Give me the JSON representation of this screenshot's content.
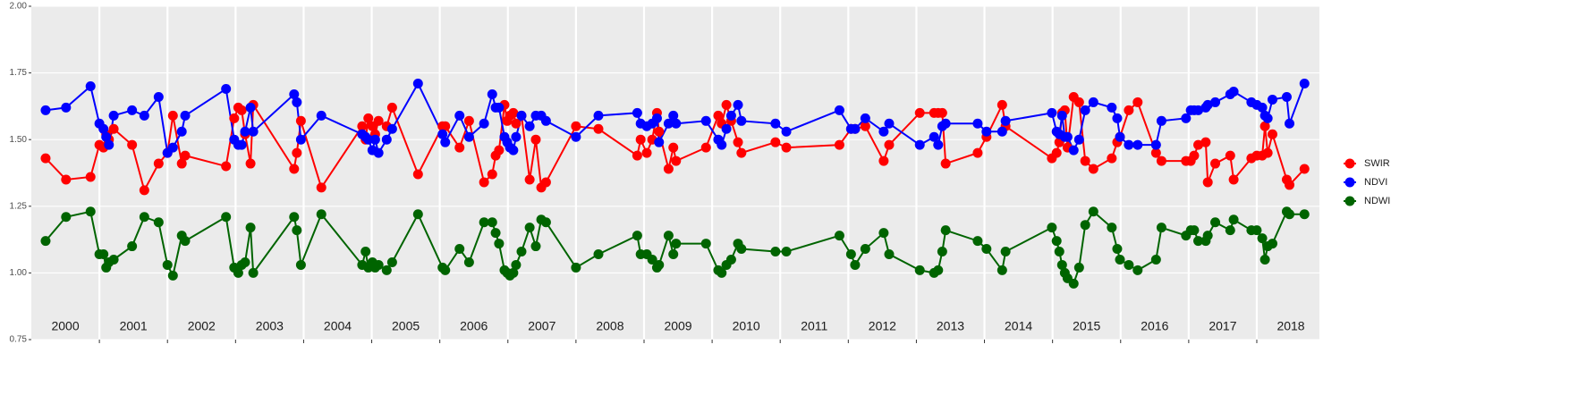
{
  "chart_data": {
    "type": "line",
    "x": [
      2000.21,
      2000.51,
      2000.87,
      2001.0,
      2001.06,
      2001.1,
      2001.14,
      2001.21,
      2001.48,
      2001.66,
      2001.87,
      2002.0,
      2002.08,
      2002.21,
      2002.26,
      2002.86,
      2002.98,
      2003.04,
      2003.09,
      2003.14,
      2003.22,
      2003.26,
      2003.86,
      2003.9,
      2003.96,
      2004.26,
      2004.86,
      2004.91,
      2004.95,
      2005.01,
      2005.05,
      2005.1,
      2005.22,
      2005.3,
      2005.68,
      2006.04,
      2006.08,
      2006.29,
      2006.43,
      2006.65,
      2006.77,
      2006.82,
      2006.87,
      2006.95,
      2006.99,
      2007.03,
      2007.08,
      2007.12,
      2007.2,
      2007.32,
      2007.41,
      2007.49,
      2007.56,
      2008.0,
      2008.33,
      2008.9,
      2008.95,
      2009.04,
      2009.12,
      2009.19,
      2009.22,
      2009.36,
      2009.43,
      2009.47,
      2009.91,
      2010.09,
      2010.14,
      2010.21,
      2010.28,
      2010.38,
      2010.43,
      2010.93,
      2011.09,
      2011.87,
      2012.04,
      2012.1,
      2012.25,
      2012.52,
      2012.6,
      2013.05,
      2013.26,
      2013.32,
      2013.38,
      2013.43,
      2013.9,
      2014.03,
      2014.26,
      2014.31,
      2014.99,
      2015.06,
      2015.1,
      2015.14,
      2015.18,
      2015.22,
      2015.31,
      2015.39,
      2015.48,
      2015.6,
      2015.87,
      2015.95,
      2015.99,
      2016.12,
      2016.25,
      2016.52,
      2016.6,
      2016.96,
      2017.03,
      2017.08,
      2017.14,
      2017.25,
      2017.28,
      2017.39,
      2017.61,
      2017.66,
      2017.92,
      2018.0,
      2018.08,
      2018.12,
      2018.16,
      2018.23,
      2018.44,
      2018.48,
      2018.7
    ],
    "series": [
      {
        "name": "SWIR",
        "color": "#ff0000",
        "values": [
          1.43,
          1.35,
          1.36,
          1.48,
          1.47,
          1.52,
          1.5,
          1.54,
          1.48,
          1.31,
          1.41,
          1.45,
          1.59,
          1.41,
          1.44,
          1.4,
          1.58,
          1.62,
          1.61,
          1.52,
          1.41,
          1.63,
          1.39,
          1.45,
          1.57,
          1.32,
          1.55,
          1.5,
          1.58,
          1.55,
          1.52,
          1.57,
          1.55,
          1.62,
          1.37,
          1.55,
          1.55,
          1.47,
          1.57,
          1.34,
          1.37,
          1.44,
          1.46,
          1.63,
          1.57,
          1.59,
          1.6,
          1.56,
          1.59,
          1.35,
          1.5,
          1.32,
          1.34,
          1.55,
          1.54,
          1.44,
          1.5,
          1.45,
          1.5,
          1.6,
          1.53,
          1.39,
          1.47,
          1.42,
          1.47,
          1.59,
          1.56,
          1.63,
          1.57,
          1.49,
          1.45,
          1.49,
          1.47,
          1.48,
          1.54,
          1.54,
          1.55,
          1.42,
          1.48,
          1.6,
          1.6,
          1.6,
          1.6,
          1.41,
          1.45,
          1.51,
          1.63,
          1.55,
          1.43,
          1.45,
          1.49,
          1.6,
          1.61,
          1.47,
          1.66,
          1.64,
          1.42,
          1.39,
          1.43,
          1.49,
          1.51,
          1.61,
          1.64,
          1.45,
          1.42,
          1.42,
          1.42,
          1.44,
          1.48,
          1.49,
          1.34,
          1.41,
          1.44,
          1.35,
          1.43,
          1.44,
          1.44,
          1.55,
          1.45,
          1.52,
          1.35,
          1.33,
          1.39
        ]
      },
      {
        "name": "NDVI",
        "color": "#0000ff",
        "values": [
          1.61,
          1.62,
          1.7,
          1.56,
          1.54,
          1.51,
          1.48,
          1.59,
          1.61,
          1.59,
          1.66,
          1.45,
          1.47,
          1.53,
          1.59,
          1.69,
          1.5,
          1.48,
          1.48,
          1.53,
          1.62,
          1.53,
          1.67,
          1.64,
          1.5,
          1.59,
          1.52,
          1.51,
          1.5,
          1.46,
          1.5,
          1.45,
          1.5,
          1.54,
          1.71,
          1.52,
          1.49,
          1.59,
          1.51,
          1.56,
          1.67,
          1.62,
          1.62,
          1.51,
          1.49,
          1.47,
          1.46,
          1.51,
          1.59,
          1.55,
          1.59,
          1.59,
          1.57,
          1.51,
          1.59,
          1.6,
          1.56,
          1.55,
          1.56,
          1.58,
          1.49,
          1.56,
          1.59,
          1.56,
          1.57,
          1.5,
          1.48,
          1.54,
          1.59,
          1.63,
          1.57,
          1.56,
          1.53,
          1.61,
          1.54,
          1.54,
          1.58,
          1.53,
          1.56,
          1.48,
          1.51,
          1.48,
          1.55,
          1.56,
          1.56,
          1.53,
          1.53,
          1.57,
          1.6,
          1.53,
          1.52,
          1.59,
          1.51,
          1.51,
          1.46,
          1.5,
          1.61,
          1.64,
          1.62,
          1.58,
          1.51,
          1.48,
          1.48,
          1.48,
          1.57,
          1.58,
          1.61,
          1.61,
          1.61,
          1.62,
          1.63,
          1.64,
          1.67,
          1.68,
          1.64,
          1.63,
          1.62,
          1.59,
          1.58,
          1.65,
          1.66,
          1.56,
          1.71
        ]
      },
      {
        "name": "NDWI",
        "color": "#006400",
        "values": [
          1.12,
          1.21,
          1.23,
          1.07,
          1.07,
          1.02,
          1.04,
          1.05,
          1.1,
          1.21,
          1.19,
          1.03,
          0.99,
          1.14,
          1.12,
          1.21,
          1.02,
          1.0,
          1.03,
          1.04,
          1.17,
          1.0,
          1.21,
          1.16,
          1.03,
          1.22,
          1.03,
          1.08,
          1.02,
          1.04,
          1.02,
          1.03,
          1.01,
          1.04,
          1.22,
          1.02,
          1.01,
          1.09,
          1.04,
          1.19,
          1.19,
          1.15,
          1.11,
          1.01,
          1.0,
          0.99,
          1.0,
          1.03,
          1.08,
          1.17,
          1.1,
          1.2,
          1.19,
          1.02,
          1.07,
          1.14,
          1.07,
          1.07,
          1.05,
          1.02,
          1.03,
          1.14,
          1.07,
          1.11,
          1.11,
          1.01,
          1.0,
          1.03,
          1.05,
          1.11,
          1.09,
          1.08,
          1.08,
          1.14,
          1.07,
          1.03,
          1.09,
          1.15,
          1.07,
          1.01,
          1.0,
          1.01,
          1.08,
          1.16,
          1.12,
          1.09,
          1.01,
          1.08,
          1.17,
          1.12,
          1.08,
          1.03,
          1.0,
          0.98,
          0.96,
          1.02,
          1.18,
          1.23,
          1.17,
          1.09,
          1.05,
          1.03,
          1.01,
          1.05,
          1.17,
          1.14,
          1.16,
          1.16,
          1.12,
          1.12,
          1.14,
          1.19,
          1.16,
          1.2,
          1.16,
          1.16,
          1.13,
          1.05,
          1.1,
          1.11,
          1.23,
          1.22,
          1.22
        ]
      }
    ],
    "xlim": [
      2000.0,
      2018.92
    ],
    "xticks": [
      {
        "value": 2000.5,
        "label": "2000"
      },
      {
        "value": 2001.5,
        "label": "2001"
      },
      {
        "value": 2002.5,
        "label": "2002"
      },
      {
        "value": 2003.5,
        "label": "2003"
      },
      {
        "value": 2004.5,
        "label": "2004"
      },
      {
        "value": 2005.5,
        "label": "2005"
      },
      {
        "value": 2006.5,
        "label": "2006"
      },
      {
        "value": 2007.5,
        "label": "2007"
      },
      {
        "value": 2008.5,
        "label": "2008"
      },
      {
        "value": 2009.5,
        "label": "2009"
      },
      {
        "value": 2010.5,
        "label": "2010"
      },
      {
        "value": 2011.5,
        "label": "2011"
      },
      {
        "value": 2012.5,
        "label": "2012"
      },
      {
        "value": 2013.5,
        "label": "2013"
      },
      {
        "value": 2014.5,
        "label": "2014"
      },
      {
        "value": 2015.5,
        "label": "2015"
      },
      {
        "value": 2016.5,
        "label": "2016"
      },
      {
        "value": 2017.5,
        "label": "2017"
      },
      {
        "value": 2018.5,
        "label": "2018"
      }
    ],
    "ylim": [
      0.75,
      2.0
    ],
    "yticks": [
      0.75,
      {
        "value": 1,
        "label": "1.00"
      },
      1.25,
      {
        "value": 1.5,
        "label": "1.50"
      },
      1.75,
      {
        "value": 2,
        "label": "2.00"
      }
    ],
    "grid": true,
    "legend": "right"
  }
}
